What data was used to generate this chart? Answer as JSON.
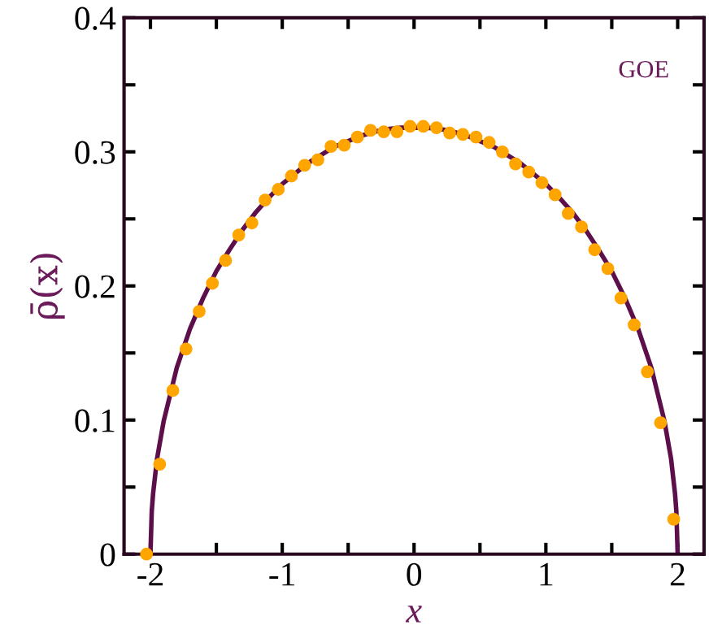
{
  "chart_data": {
    "type": "line",
    "xlabel": "x",
    "ylabel": "ρ̄(x)",
    "annotations": [
      "GOE"
    ],
    "xlim": [
      -2.2,
      2.2
    ],
    "ylim": [
      0,
      0.4
    ],
    "xticks": [
      -2,
      {
        "value": -1.5,
        "label": null
      },
      -1,
      {
        "value": -0.5,
        "label": null
      },
      0,
      {
        "value": 0.5,
        "label": null
      },
      1,
      {
        "value": 1.5,
        "label": null
      },
      2
    ],
    "yticks": [
      0,
      {
        "value": 0.05,
        "label": null
      },
      0.1,
      {
        "value": 0.15,
        "label": null
      },
      0.2,
      {
        "value": 0.25,
        "label": null
      },
      0.3,
      {
        "value": 0.35,
        "label": null
      },
      0.4
    ],
    "grid": false,
    "legend": false,
    "series": [
      {
        "color": "#5c0f4a",
        "marker": "none",
        "line_style": "solid",
        "x": [
          -2,
          -1.99,
          -1.98,
          -1.95,
          -1.9,
          -1.8,
          -1.7,
          -1.6,
          -1.5,
          -1.4,
          -1.3,
          -1.2,
          -1.1,
          -1,
          -0.9,
          -0.8,
          -0.7,
          -0.6,
          -0.5,
          -0.4,
          -0.3,
          -0.2,
          -0.1,
          0,
          0.1,
          0.2,
          0.3,
          0.4,
          0.5,
          0.6,
          0.7,
          0.8,
          0.9,
          1,
          1.1,
          1.2,
          1.3,
          1.4,
          1.5,
          1.6,
          1.7,
          1.8,
          1.9,
          1.95,
          1.98,
          1.99,
          2
        ],
        "values": [
          0,
          0.032,
          0.045,
          0.071,
          0.099,
          0.139,
          0.168,
          0.191,
          0.211,
          0.227,
          0.242,
          0.255,
          0.266,
          0.276,
          0.284,
          0.292,
          0.298,
          0.304,
          0.308,
          0.312,
          0.315,
          0.317,
          0.318,
          0.318,
          0.318,
          0.317,
          0.315,
          0.312,
          0.308,
          0.304,
          0.298,
          0.292,
          0.284,
          0.276,
          0.266,
          0.255,
          0.242,
          0.227,
          0.211,
          0.191,
          0.168,
          0.139,
          0.099,
          0.071,
          0.045,
          0.032,
          0
        ]
      },
      {
        "type": "scatter",
        "color": "#ffa500",
        "marker": "circle",
        "x": [
          -2.03,
          -1.93,
          -1.83,
          -1.73,
          -1.63,
          -1.53,
          -1.43,
          -1.33,
          -1.23,
          -1.13,
          -1.03,
          -0.93,
          -0.83,
          -0.73,
          -0.63,
          -0.53,
          -0.43,
          -0.33,
          -0.23,
          -0.13,
          -0.03,
          0.07,
          0.17,
          0.27,
          0.37,
          0.47,
          0.57,
          0.67,
          0.77,
          0.87,
          0.97,
          1.07,
          1.17,
          1.27,
          1.37,
          1.47,
          1.57,
          1.67,
          1.77,
          1.87,
          1.97
        ],
        "values": [
          0,
          0.067,
          0.122,
          0.153,
          0.181,
          0.202,
          0.219,
          0.238,
          0.247,
          0.264,
          0.272,
          0.282,
          0.29,
          0.294,
          0.304,
          0.305,
          0.311,
          0.316,
          0.315,
          0.315,
          0.319,
          0.319,
          0.318,
          0.314,
          0.313,
          0.311,
          0.307,
          0.3,
          0.291,
          0.285,
          0.277,
          0.268,
          0.254,
          0.244,
          0.227,
          0.213,
          0.191,
          0.171,
          0.136,
          0.098,
          0.026
        ]
      }
    ]
  }
}
